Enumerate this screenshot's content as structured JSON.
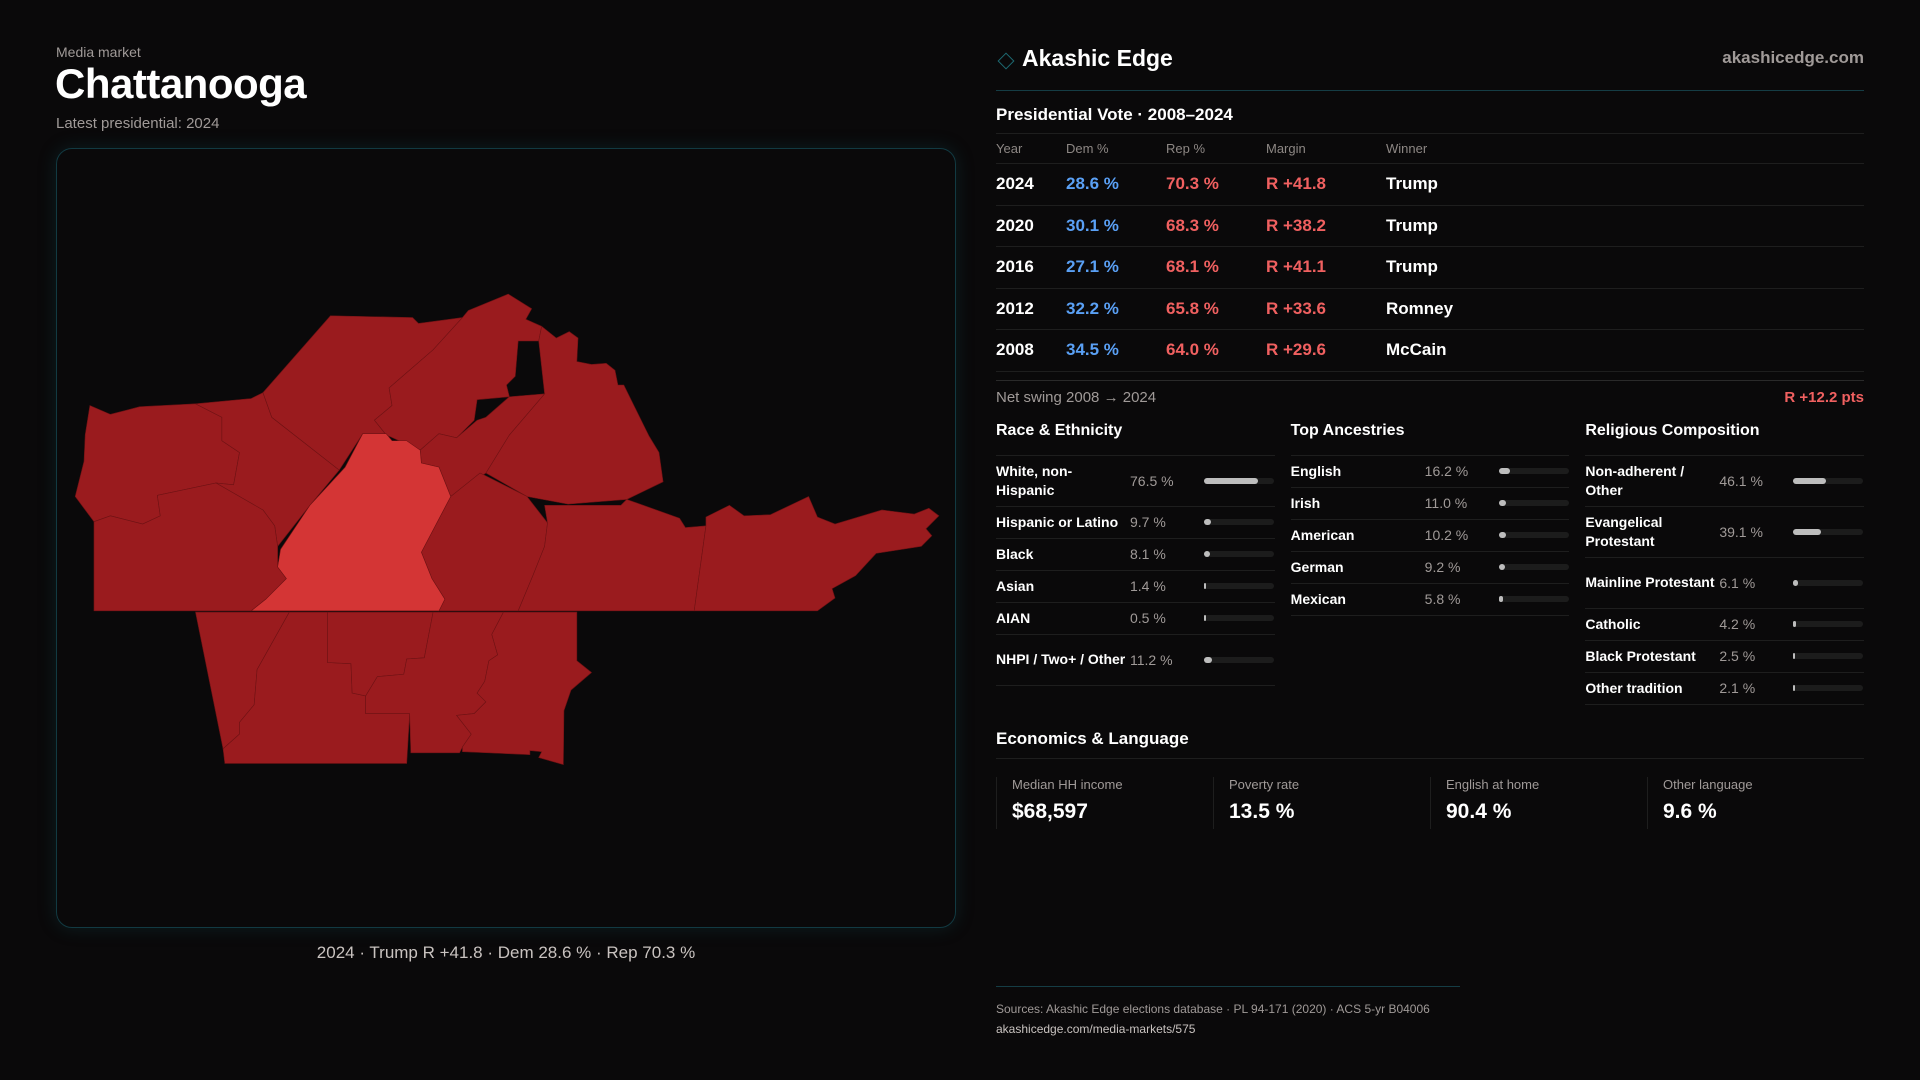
{
  "header": {
    "eyebrow": "Media market",
    "title": "Chattanooga",
    "subtitle": "Latest presidential: 2024"
  },
  "map": {
    "caption": "2024 · Trump  R +41.8 · Dem 28.6 % · Rep 70.3 %",
    "colors": {
      "county": "#9a1b1e",
      "highlight": "#d43535"
    }
  },
  "brand": {
    "name": "Akashic Edge",
    "url": "akashicedge.com"
  },
  "presidential": {
    "title": "Presidential Vote · 2008–2024",
    "columns": [
      "Year",
      "Dem %",
      "Rep %",
      "Margin",
      "Winner"
    ],
    "rows": [
      {
        "year": "2024",
        "dem": "28.6 %",
        "rep": "70.3 %",
        "margin": "R +41.8",
        "winner": "Trump"
      },
      {
        "year": "2020",
        "dem": "30.1 %",
        "rep": "68.3 %",
        "margin": "R +38.2",
        "winner": "Trump"
      },
      {
        "year": "2016",
        "dem": "27.1 %",
        "rep": "68.1 %",
        "margin": "R +41.1",
        "winner": "Trump"
      },
      {
        "year": "2012",
        "dem": "32.2 %",
        "rep": "65.8 %",
        "margin": "R +33.6",
        "winner": "Romney"
      },
      {
        "year": "2008",
        "dem": "34.5 %",
        "rep": "64.0 %",
        "margin": "R +29.6",
        "winner": "McCain"
      }
    ],
    "swing_label": "Net swing 2008 → 2024",
    "swing_value": "R +12.2 pts"
  },
  "race": {
    "title": "Race & Ethnicity",
    "items": [
      {
        "label": "White, non-Hispanic",
        "value": "76.5 %",
        "pct": 76.5
      },
      {
        "label": "Hispanic or Latino",
        "value": "9.7 %",
        "pct": 9.7
      },
      {
        "label": "Black",
        "value": "8.1 %",
        "pct": 8.1
      },
      {
        "label": "Asian",
        "value": "1.4 %",
        "pct": 1.4
      },
      {
        "label": "AIAN",
        "value": "0.5 %",
        "pct": 0.5
      },
      {
        "label": "NHPI / Two+ / Other",
        "value": "11.2 %",
        "pct": 11.2
      }
    ]
  },
  "ancestry": {
    "title": "Top Ancestries",
    "items": [
      {
        "label": "English",
        "value": "16.2 %",
        "pct": 16.2
      },
      {
        "label": "Irish",
        "value": "11.0 %",
        "pct": 11.0
      },
      {
        "label": "American",
        "value": "10.2 %",
        "pct": 10.2
      },
      {
        "label": "German",
        "value": "9.2 %",
        "pct": 9.2
      },
      {
        "label": "Mexican",
        "value": "5.8 %",
        "pct": 5.8
      }
    ]
  },
  "religion": {
    "title": "Religious Composition",
    "items": [
      {
        "label": "Non-adherent / Other",
        "value": "46.1 %",
        "pct": 46.1
      },
      {
        "label": "Evangelical Protestant",
        "value": "39.1 %",
        "pct": 39.1
      },
      {
        "label": "Mainline Protestant",
        "value": "6.1 %",
        "pct": 6.1
      },
      {
        "label": "Catholic",
        "value": "4.2 %",
        "pct": 4.2
      },
      {
        "label": "Black Protestant",
        "value": "2.5 %",
        "pct": 2.5
      },
      {
        "label": "Other tradition",
        "value": "2.1 %",
        "pct": 2.1
      }
    ]
  },
  "economics": {
    "title": "Economics & Language",
    "metrics": [
      {
        "label": "Median HH income",
        "value": "$68,597"
      },
      {
        "label": "Poverty rate",
        "value": "13.5 %"
      },
      {
        "label": "English at home",
        "value": "90.4 %"
      },
      {
        "label": "Other language",
        "value": "9.6 %"
      }
    ]
  },
  "footer": {
    "sources": "Sources: Akashic Edge elections database · PL 94-171 (2020) · ACS 5-yr B04006",
    "link": "akashicedge.com/media-markets/575"
  }
}
